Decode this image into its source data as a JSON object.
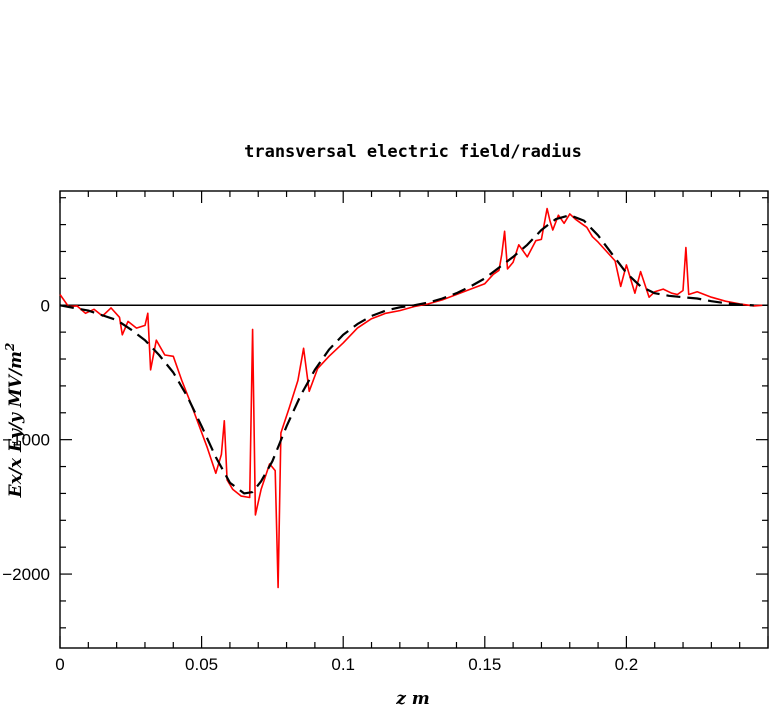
{
  "chart_data": {
    "type": "line",
    "title": "transversal electric field/radius",
    "xlabel": "z m",
    "ylabel": "Ex/x Ey/y MV/m",
    "ylabel_exponent": "2",
    "xlim": [
      0,
      0.25
    ],
    "ylim": [
      -2550,
      850
    ],
    "x_ticks": [
      0,
      0.05,
      0.1,
      0.15,
      0.2
    ],
    "x_tick_labels": [
      "0",
      "0.05",
      "0.1",
      "0.15",
      "0.2"
    ],
    "y_ticks": [
      -2000,
      -1000,
      0
    ],
    "y_tick_labels": [
      "−2000",
      "−1000",
      "0"
    ],
    "series": [
      {
        "color": "#ff0000",
        "style": "solid",
        "x": [
          0,
          0.003,
          0.006,
          0.009,
          0.012,
          0.015,
          0.018,
          0.021,
          0.022,
          0.024,
          0.027,
          0.03,
          0.031,
          0.032,
          0.034,
          0.037,
          0.04,
          0.043,
          0.046,
          0.049,
          0.052,
          0.055,
          0.057,
          0.058,
          0.059,
          0.061,
          0.064,
          0.067,
          0.068,
          0.069,
          0.071,
          0.074,
          0.076,
          0.077,
          0.078,
          0.081,
          0.084,
          0.086,
          0.088,
          0.091,
          0.095,
          0.1,
          0.105,
          0.11,
          0.115,
          0.12,
          0.125,
          0.13,
          0.135,
          0.14,
          0.145,
          0.15,
          0.153,
          0.155,
          0.156,
          0.157,
          0.158,
          0.16,
          0.162,
          0.165,
          0.168,
          0.17,
          0.172,
          0.173,
          0.174,
          0.176,
          0.178,
          0.18,
          0.182,
          0.184,
          0.186,
          0.188,
          0.19,
          0.193,
          0.196,
          0.198,
          0.2,
          0.203,
          0.205,
          0.208,
          0.21,
          0.213,
          0.216,
          0.218,
          0.22,
          0.221,
          0.222,
          0.225,
          0.23,
          0.235,
          0.24,
          0.245,
          0.248
        ],
        "y": [
          80,
          -10,
          -5,
          -60,
          -30,
          -80,
          -20,
          -90,
          -220,
          -120,
          -170,
          -150,
          -60,
          -480,
          -260,
          -370,
          -380,
          -560,
          -720,
          -890,
          -1060,
          -1250,
          -1110,
          -860,
          -1300,
          -1370,
          -1420,
          -1430,
          -180,
          -1560,
          -1370,
          -1180,
          -1230,
          -2100,
          -950,
          -760,
          -560,
          -320,
          -640,
          -470,
          -380,
          -280,
          -170,
          -100,
          -60,
          -40,
          -10,
          10,
          40,
          80,
          120,
          160,
          230,
          260,
          380,
          550,
          270,
          320,
          450,
          360,
          480,
          490,
          720,
          630,
          560,
          670,
          610,
          680,
          640,
          610,
          580,
          510,
          470,
          400,
          330,
          140,
          300,
          90,
          250,
          60,
          100,
          120,
          90,
          80,
          110,
          430,
          80,
          100,
          60,
          30,
          10,
          -5,
          0
        ]
      },
      {
        "color": "#000000",
        "style": "dashed",
        "x": [
          0,
          0.01,
          0.02,
          0.025,
          0.03,
          0.035,
          0.04,
          0.045,
          0.05,
          0.055,
          0.06,
          0.065,
          0.068,
          0.071,
          0.075,
          0.08,
          0.085,
          0.09,
          0.095,
          0.1,
          0.105,
          0.11,
          0.115,
          0.12,
          0.125,
          0.13,
          0.135,
          0.14,
          0.145,
          0.15,
          0.155,
          0.16,
          0.165,
          0.17,
          0.175,
          0.18,
          0.185,
          0.19,
          0.195,
          0.2,
          0.205,
          0.21,
          0.215,
          0.22,
          0.225,
          0.23,
          0.235,
          0.24,
          0.245
        ],
        "y": [
          0,
          -40,
          -110,
          -180,
          -260,
          -370,
          -500,
          -680,
          -900,
          -1130,
          -1320,
          -1400,
          -1390,
          -1310,
          -1160,
          -900,
          -670,
          -480,
          -330,
          -220,
          -140,
          -80,
          -40,
          -15,
          0,
          20,
          50,
          90,
          140,
          200,
          280,
          360,
          450,
          560,
          640,
          670,
          630,
          520,
          380,
          240,
          140,
          90,
          70,
          60,
          50,
          30,
          15,
          5,
          0
        ]
      }
    ]
  }
}
